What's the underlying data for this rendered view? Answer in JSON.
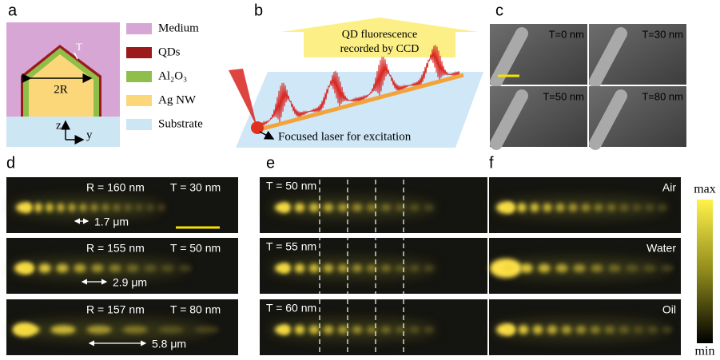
{
  "panels": {
    "a": {
      "label": "a",
      "legend": [
        "Medium",
        "QDs",
        "Al₂O₃",
        "Ag NW",
        "Substrate"
      ],
      "diagram": {
        "thickness": "T",
        "diameter": "2R",
        "axis_z": "z",
        "axis_y": "y"
      }
    },
    "b": {
      "label": "b",
      "top_text": [
        "QD fluorescence",
        "recorded by CCD"
      ],
      "bottom_text": "Focused laser for excitation"
    },
    "c": {
      "label": "c",
      "images": [
        "T=0 nm",
        "T=30 nm",
        "T=50 nm",
        "T=80 nm"
      ]
    },
    "d": {
      "label": "d",
      "rows": [
        {
          "radius": "R = 160 nm",
          "thickness": "T = 30 nm",
          "period": "1.7 μm"
        },
        {
          "radius": "R = 155 nm",
          "thickness": "T = 50 nm",
          "period": "2.9 μm"
        },
        {
          "radius": "R = 157 nm",
          "thickness": "T = 80 nm",
          "period": "5.8 μm"
        }
      ]
    },
    "e": {
      "label": "e",
      "rows": [
        "T = 50 nm",
        "T = 55 nm",
        "T = 60 nm"
      ]
    },
    "f": {
      "label": "f",
      "rows": [
        "Air",
        "Water",
        "Oil"
      ],
      "colorbar": {
        "max": "max",
        "min": "min"
      }
    }
  }
}
